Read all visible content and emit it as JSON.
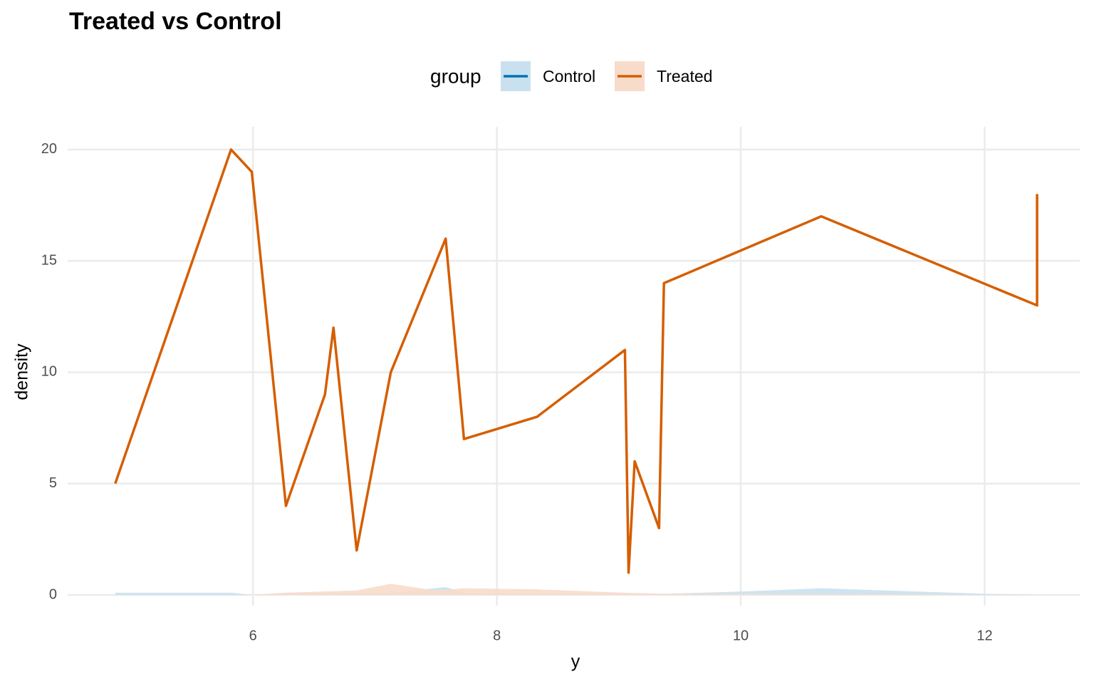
{
  "chart_data": {
    "type": "line",
    "title": "Treated vs Control",
    "xlabel": "y",
    "ylabel": "density",
    "legend_title": "group",
    "legend_position": "top",
    "grid": true,
    "xlim": [
      4.48,
      12.78
    ],
    "xticks": [
      6,
      8,
      10,
      12
    ],
    "ylim": [
      -0.48,
      21.02
    ],
    "yticks": [
      0,
      5,
      10,
      15,
      20
    ],
    "series": [
      {
        "name": "Control",
        "color": "#0072B2",
        "fill": "#c9e1ef",
        "density_x": [
          4.87,
          5.82,
          5.99,
          6.27,
          6.66,
          7.13,
          7.58,
          7.73,
          8.33,
          9.05,
          9.37,
          10.0,
          10.66,
          12.0,
          12.43
        ],
        "density": [
          0.1,
          0.1,
          0,
          0.1,
          0.1,
          0.1,
          0.35,
          0.1,
          0.05,
          0.05,
          0.05,
          0.15,
          0.3,
          0.05,
          0
        ]
      },
      {
        "name": "Treated",
        "color": "#D55E00",
        "fill": "#f8dccb",
        "x": [
          4.87,
          5.82,
          5.99,
          6.27,
          6.59,
          6.66,
          6.85,
          7.13,
          7.58,
          7.73,
          8.33,
          9.05,
          9.08,
          9.13,
          9.33,
          9.37,
          10.66,
          12.43,
          12.43
        ],
        "values": [
          5,
          20,
          19,
          4,
          9,
          12,
          2,
          10,
          16,
          7,
          8,
          11,
          1,
          6,
          3,
          14,
          17,
          13,
          18
        ],
        "density_x": [
          4.87,
          5.99,
          6.27,
          6.85,
          7.13,
          7.5,
          7.73,
          8.33,
          9.05,
          9.37,
          10.66,
          12.43
        ],
        "density": [
          0,
          0,
          0.1,
          0.2,
          0.5,
          0.2,
          0.3,
          0.25,
          0.1,
          0.05,
          0.05,
          0
        ]
      }
    ]
  }
}
